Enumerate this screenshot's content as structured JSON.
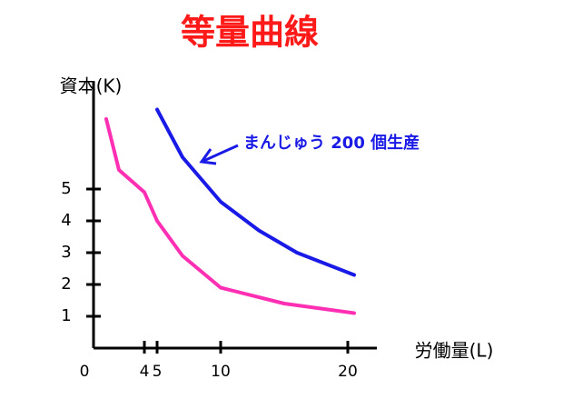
{
  "chart_data": {
    "type": "line",
    "title": "等量曲線",
    "x_label": "労働量(L)",
    "y_label": "資本(K)",
    "annotation": "まんじゅう 200 個生産",
    "xlim": [
      0,
      22
    ],
    "ylim": [
      0,
      8.2
    ],
    "xticks": [
      0,
      4,
      5,
      10,
      20
    ],
    "yticks": [
      1,
      2,
      3,
      4,
      5
    ],
    "series": [
      {
        "color": "#ff2fb4",
        "x": [
          1,
          2,
          4,
          5,
          7,
          10,
          15,
          20.5
        ],
        "values": [
          7.2,
          5.6,
          4.9,
          4,
          2.9,
          1.9,
          1.4,
          1.1
        ]
      },
      {
        "color": "#1a1ae6",
        "x": [
          5,
          7,
          10,
          13,
          16,
          20.5
        ],
        "values": [
          7.5,
          6,
          4.6,
          3.7,
          3,
          2.3
        ]
      }
    ]
  }
}
